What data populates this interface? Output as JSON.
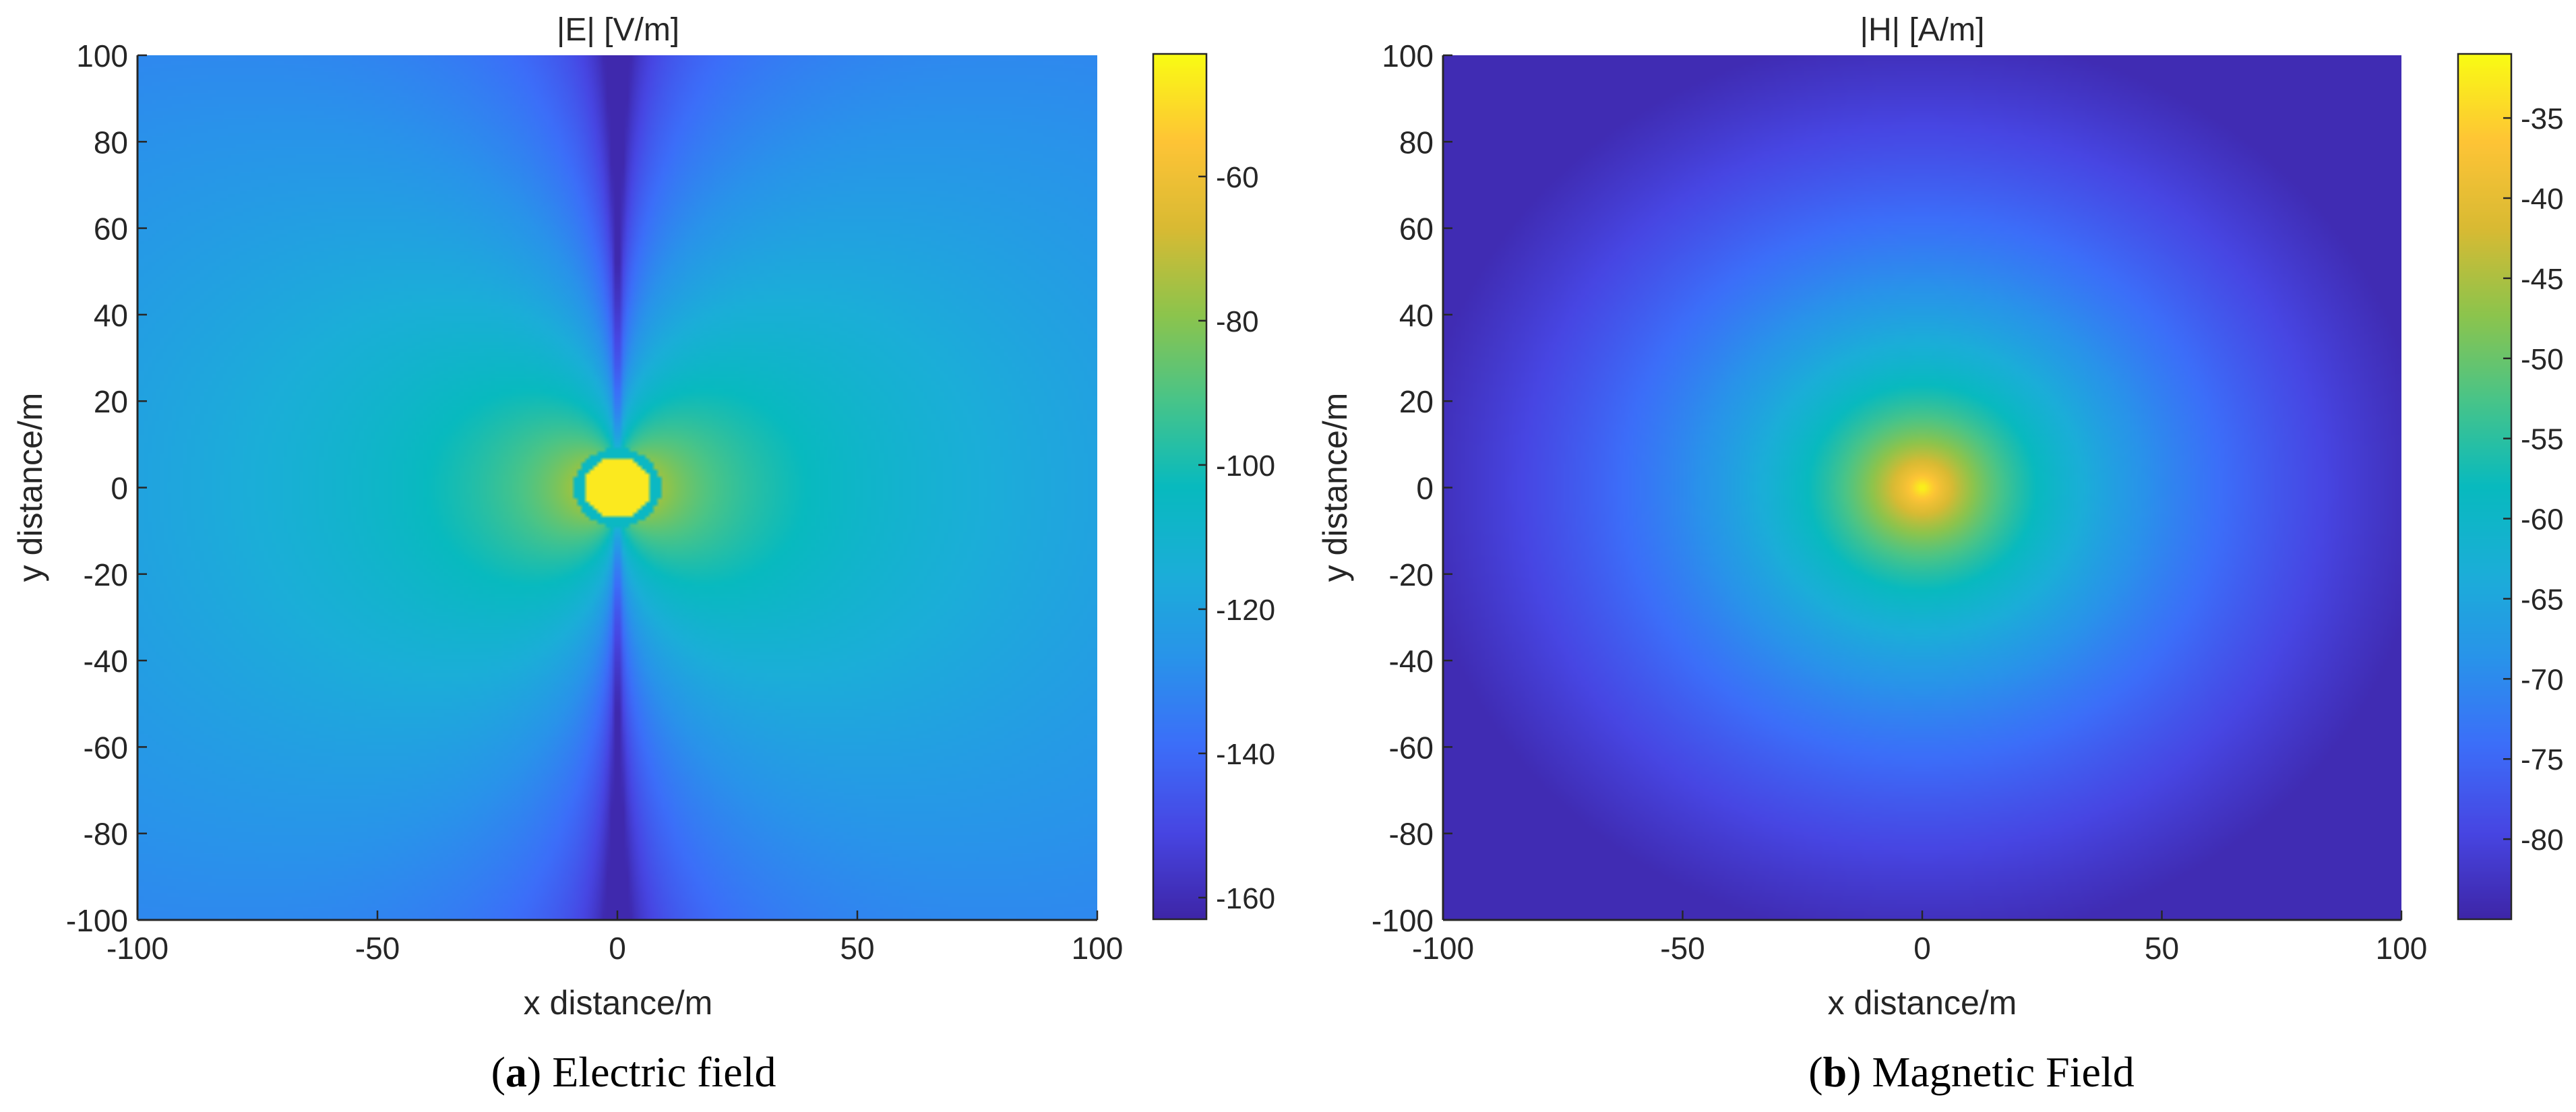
{
  "chart_data": [
    {
      "type": "heatmap",
      "title": "|E| [V/m]",
      "xlabel": "x distance/m",
      "ylabel": "y distance/m",
      "xlim": [
        -100,
        100
      ],
      "ylim": [
        -100,
        100
      ],
      "x_ticks": [
        "-100",
        "-50",
        "0",
        "50",
        "100"
      ],
      "y_ticks": [
        "100",
        "80",
        "60",
        "40",
        "20",
        "0",
        "-20",
        "-40",
        "-60",
        "-80",
        "-100"
      ],
      "colorbar": {
        "range": [
          -163,
          -43
        ],
        "ticks": [
          "-60",
          "-80",
          "-100",
          "-120",
          "-140",
          "-160"
        ]
      },
      "field_model": "electric-dipole",
      "source_position": [
        0,
        0
      ],
      "caption": {
        "letter": "a",
        "text": "Electric field"
      }
    },
    {
      "type": "heatmap",
      "title": "|H| [A/m]",
      "xlabel": "x distance/m",
      "ylabel": "y distance/m",
      "xlim": [
        -100,
        100
      ],
      "ylim": [
        -100,
        100
      ],
      "x_ticks": [
        "-100",
        "-50",
        "0",
        "50",
        "100"
      ],
      "y_ticks": [
        "100",
        "80",
        "60",
        "40",
        "20",
        "0",
        "-20",
        "-40",
        "-60",
        "-80",
        "-100"
      ],
      "colorbar": {
        "range": [
          -85,
          -31
        ],
        "ticks": [
          "-35",
          "-40",
          "-45",
          "-50",
          "-55",
          "-60",
          "-65",
          "-70",
          "-75",
          "-80"
        ]
      },
      "field_model": "radial",
      "source_position": [
        0,
        0
      ],
      "caption": {
        "letter": "b",
        "text": "Magnetic Field"
      }
    }
  ]
}
